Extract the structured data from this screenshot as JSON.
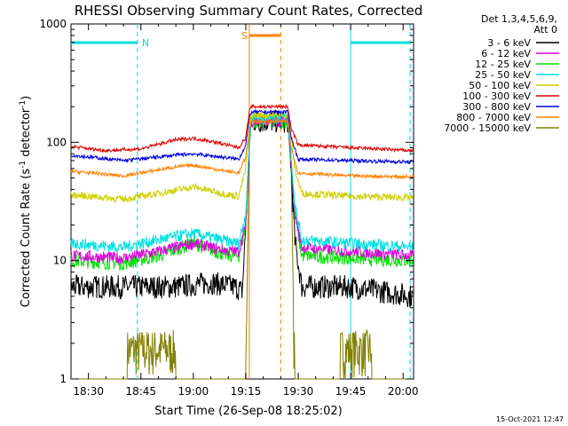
{
  "chart_data": {
    "type": "line",
    "title": "RHESSI Observing Summary Count Rates, Corrected",
    "xlabel": "Start Time (26-Sep-08 18:25:02)",
    "ylabel_main": "Corrected Count Rate (s",
    "ylabel_sup1": "-1",
    "ylabel_mid": " detector",
    "ylabel_sup2": "-1",
    "ylabel_end": ")",
    "y_scale": "log",
    "xlim": [
      "18:25",
      "20:03"
    ],
    "ylim": [
      1,
      1000
    ],
    "x_ticks": [
      "18:30",
      "18:45",
      "19:00",
      "19:15",
      "19:30",
      "19:45",
      "20:00"
    ],
    "y_ticks": [
      "1",
      "10",
      "100",
      "1000"
    ],
    "legend_position": "right",
    "legend_header": [
      "Det 1,3,4,5,6,9,",
      "Att 0"
    ],
    "timestamp": "15-Oct-2021 12:47",
    "series": [
      {
        "name": "3 - 6 keV",
        "color": "#000000",
        "profile": [
          [
            "18:25",
            6
          ],
          [
            "18:40",
            6
          ],
          [
            "18:55",
            6
          ],
          [
            "19:05",
            6.5
          ],
          [
            "19:12",
            6
          ],
          [
            "19:14",
            5.5
          ],
          [
            "19:15",
            20
          ],
          [
            "19:16",
            90
          ],
          [
            "19:16.5",
            150
          ],
          [
            "19:17",
            150
          ],
          [
            "19:27",
            150
          ],
          [
            "19:28",
            60
          ],
          [
            "19:29",
            15
          ],
          [
            "19:31",
            6
          ],
          [
            "19:45",
            6
          ],
          [
            "20:03",
            5
          ]
        ]
      },
      {
        "name": "6 - 12 keV",
        "color": "#e000e0",
        "profile": [
          [
            "18:25",
            11
          ],
          [
            "18:40",
            10.5
          ],
          [
            "18:50",
            12
          ],
          [
            "19:00",
            14
          ],
          [
            "19:10",
            12
          ],
          [
            "19:13",
            12
          ],
          [
            "19:15",
            20
          ],
          [
            "19:16",
            90
          ],
          [
            "19:16.5",
            150
          ],
          [
            "19:17",
            150
          ],
          [
            "19:27",
            150
          ],
          [
            "19:28",
            70
          ],
          [
            "19:29",
            25
          ],
          [
            "19:31",
            13
          ],
          [
            "19:45",
            12
          ],
          [
            "20:03",
            11
          ]
        ]
      },
      {
        "name": "12 - 25 keV",
        "color": "#00e000",
        "profile": [
          [
            "18:25",
            10
          ],
          [
            "18:40",
            9.5
          ],
          [
            "18:50",
            11
          ],
          [
            "19:00",
            14
          ],
          [
            "19:10",
            11
          ],
          [
            "19:13",
            11
          ],
          [
            "19:15",
            20
          ],
          [
            "19:16",
            90
          ],
          [
            "19:16.5",
            150
          ],
          [
            "19:17",
            150
          ],
          [
            "19:27",
            150
          ],
          [
            "19:28",
            70
          ],
          [
            "19:29",
            25
          ],
          [
            "19:31",
            11
          ],
          [
            "19:45",
            10.5
          ],
          [
            "20:03",
            10
          ]
        ]
      },
      {
        "name": "25 - 50 keV",
        "color": "#00e0e0",
        "profile": [
          [
            "18:25",
            14
          ],
          [
            "18:40",
            13
          ],
          [
            "18:50",
            15
          ],
          [
            "19:00",
            17
          ],
          [
            "19:10",
            14.5
          ],
          [
            "19:13",
            14
          ],
          [
            "19:15",
            25
          ],
          [
            "19:16",
            90
          ],
          [
            "19:16.5",
            160
          ],
          [
            "19:17",
            160
          ],
          [
            "19:27",
            160
          ],
          [
            "19:28",
            80
          ],
          [
            "19:29",
            30
          ],
          [
            "19:31",
            15
          ],
          [
            "19:45",
            14
          ],
          [
            "20:03",
            13
          ]
        ]
      },
      {
        "name": "50 - 100 keV",
        "color": "#d0d000",
        "profile": [
          [
            "18:25",
            36
          ],
          [
            "18:40",
            33
          ],
          [
            "18:50",
            37
          ],
          [
            "19:00",
            42
          ],
          [
            "19:10",
            36
          ],
          [
            "19:13",
            35
          ],
          [
            "19:15",
            60
          ],
          [
            "19:16",
            120
          ],
          [
            "19:16.5",
            170
          ],
          [
            "19:17",
            170
          ],
          [
            "19:27",
            170
          ],
          [
            "19:28",
            110
          ],
          [
            "19:29",
            60
          ],
          [
            "19:31",
            37
          ],
          [
            "19:45",
            35
          ],
          [
            "20:03",
            34
          ]
        ]
      },
      {
        "name": "100 - 300 keV",
        "color": "#e00000",
        "profile": [
          [
            "18:25",
            92
          ],
          [
            "18:35",
            85
          ],
          [
            "18:45",
            88
          ],
          [
            "18:55",
            105
          ],
          [
            "19:00",
            108
          ],
          [
            "19:05",
            102
          ],
          [
            "19:13",
            90
          ],
          [
            "19:15",
            110
          ],
          [
            "19:16",
            180
          ],
          [
            "19:16.5",
            200
          ],
          [
            "19:17",
            200
          ],
          [
            "19:27",
            200
          ],
          [
            "19:28",
            130
          ],
          [
            "19:30",
            95
          ],
          [
            "19:45",
            90
          ],
          [
            "20:03",
            85
          ]
        ]
      },
      {
        "name": "300 - 800 keV",
        "color": "#0000e0",
        "profile": [
          [
            "18:25",
            78
          ],
          [
            "18:40",
            70
          ],
          [
            "18:55",
            78
          ],
          [
            "19:00",
            80
          ],
          [
            "19:08",
            75
          ],
          [
            "19:13",
            72
          ],
          [
            "19:15",
            95
          ],
          [
            "19:16",
            160
          ],
          [
            "19:16.5",
            180
          ],
          [
            "19:17",
            180
          ],
          [
            "19:27",
            180
          ],
          [
            "19:28",
            110
          ],
          [
            "19:30",
            72
          ],
          [
            "19:45",
            70
          ],
          [
            "20:03",
            68
          ]
        ]
      },
      {
        "name": "800 - 7000 keV",
        "color": "#ff8000",
        "profile": [
          [
            "18:25",
            57
          ],
          [
            "18:40",
            52
          ],
          [
            "18:55",
            62
          ],
          [
            "19:00",
            64
          ],
          [
            "19:08",
            58
          ],
          [
            "19:13",
            55
          ],
          [
            "19:15",
            75
          ],
          [
            "19:16",
            130
          ],
          [
            "19:16.5",
            150
          ],
          [
            "19:17",
            150
          ],
          [
            "19:27",
            150
          ],
          [
            "19:28",
            90
          ],
          [
            "19:30",
            55
          ],
          [
            "19:45",
            52
          ],
          [
            "20:03",
            51
          ]
        ]
      },
      {
        "name": "7000 - 15000 keV",
        "color": "#808000",
        "profile": [
          [
            "18:25",
            1
          ],
          [
            "18:41",
            1
          ],
          [
            "18:41",
            2.5
          ],
          [
            "18:55",
            2.5
          ],
          [
            "18:55",
            1
          ],
          [
            "19:15",
            1
          ],
          [
            "19:16",
            100
          ],
          [
            "19:16.5",
            150
          ],
          [
            "19:17",
            150
          ],
          [
            "19:27",
            150
          ],
          [
            "19:28",
            60
          ],
          [
            "19:29",
            1
          ],
          [
            "19:42",
            1
          ],
          [
            "19:42",
            2.5
          ],
          [
            "19:51",
            2.5
          ],
          [
            "19:51",
            1
          ],
          [
            "20:03",
            1
          ]
        ]
      }
    ],
    "annotations": [
      {
        "label": "N",
        "type": "night",
        "intervals": [
          [
            "18:25",
            "18:44"
          ],
          [
            "19:45",
            "20:02"
          ]
        ],
        "color": "#00e0e0"
      },
      {
        "label": "S",
        "type": "saa",
        "intervals": [
          [
            "19:16",
            "19:25"
          ]
        ],
        "color": "#ff8000"
      }
    ]
  }
}
